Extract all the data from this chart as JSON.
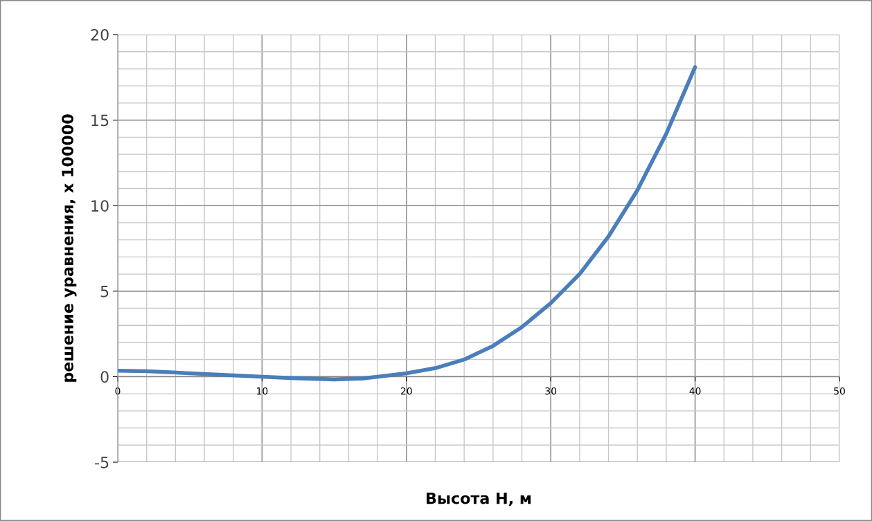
{
  "chart_data": {
    "type": "line",
    "xlabel": "Высота H, м",
    "ylabel": "решение уравнения, x 100000",
    "x": [
      0,
      2,
      5,
      8,
      10,
      12,
      15,
      17,
      18,
      20,
      22,
      24,
      26,
      28,
      30,
      32,
      34,
      36,
      38,
      40
    ],
    "series": [
      {
        "color": "#4a7ebb",
        "values": [
          0.35,
          0.32,
          0.2,
          0.08,
          0.0,
          -0.08,
          -0.16,
          -0.1,
          0.0,
          0.2,
          0.5,
          1.0,
          1.8,
          2.9,
          4.3,
          6.0,
          8.2,
          10.9,
          14.2,
          18.1
        ]
      }
    ],
    "xlim": [
      0,
      50
    ],
    "xticks": [
      0,
      10,
      20,
      30,
      40,
      50
    ],
    "ylim": [
      -5,
      20
    ],
    "yticks": [
      -5,
      0,
      5,
      10,
      15,
      20
    ],
    "grid": true,
    "marker": "none",
    "line_style": "solid"
  }
}
